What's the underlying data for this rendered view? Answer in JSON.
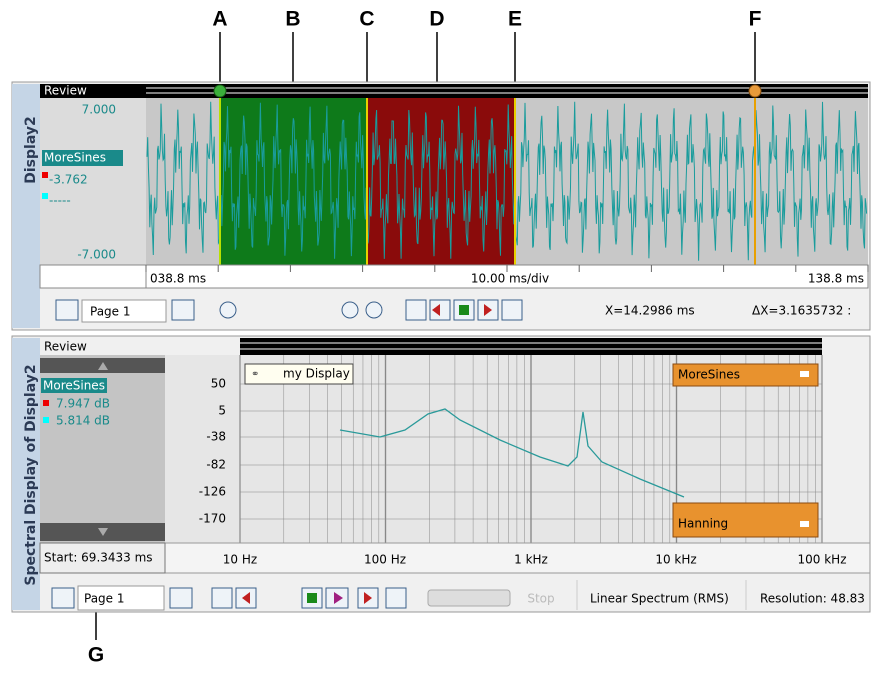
{
  "callouts": [
    "A",
    "B",
    "C",
    "D",
    "E",
    "F",
    "G"
  ],
  "time_display": {
    "tab": "Display2",
    "mode": "Review",
    "y_max": "7.000",
    "channel": "MoreSines",
    "cursor_value": "-3.762",
    "cursor2_value": "-----",
    "y_min": "-7.000",
    "x_start": "038.8 ms",
    "scale": "10.00 ms/div",
    "x_end": "138.8 ms",
    "page": "Page 1",
    "x_readout": "X=14.2986 ms",
    "dx_readout": "ΔX=3.1635732 :"
  },
  "spectral_display": {
    "tab": "Spectral Display of Display2",
    "mode": "Review",
    "channel": "MoreSines",
    "value1": "7.947 dB",
    "value2": "5.814 dB",
    "start": "Start: 69.3433 ms",
    "y_labels": [
      "50",
      "5",
      "-38",
      "-82",
      "-126",
      "-170"
    ],
    "x_labels": [
      "10 Hz",
      "100 Hz",
      "1 kHz",
      "10 kHz",
      "100 kHz"
    ],
    "display_name": "my Display",
    "channel_tag": "MoreSines",
    "window_tag": "Hanning",
    "page": "Page 1",
    "stop": "Stop",
    "spectrum_type": "Linear Spectrum (RMS)",
    "resolution": "Resolution: 48.83"
  }
}
